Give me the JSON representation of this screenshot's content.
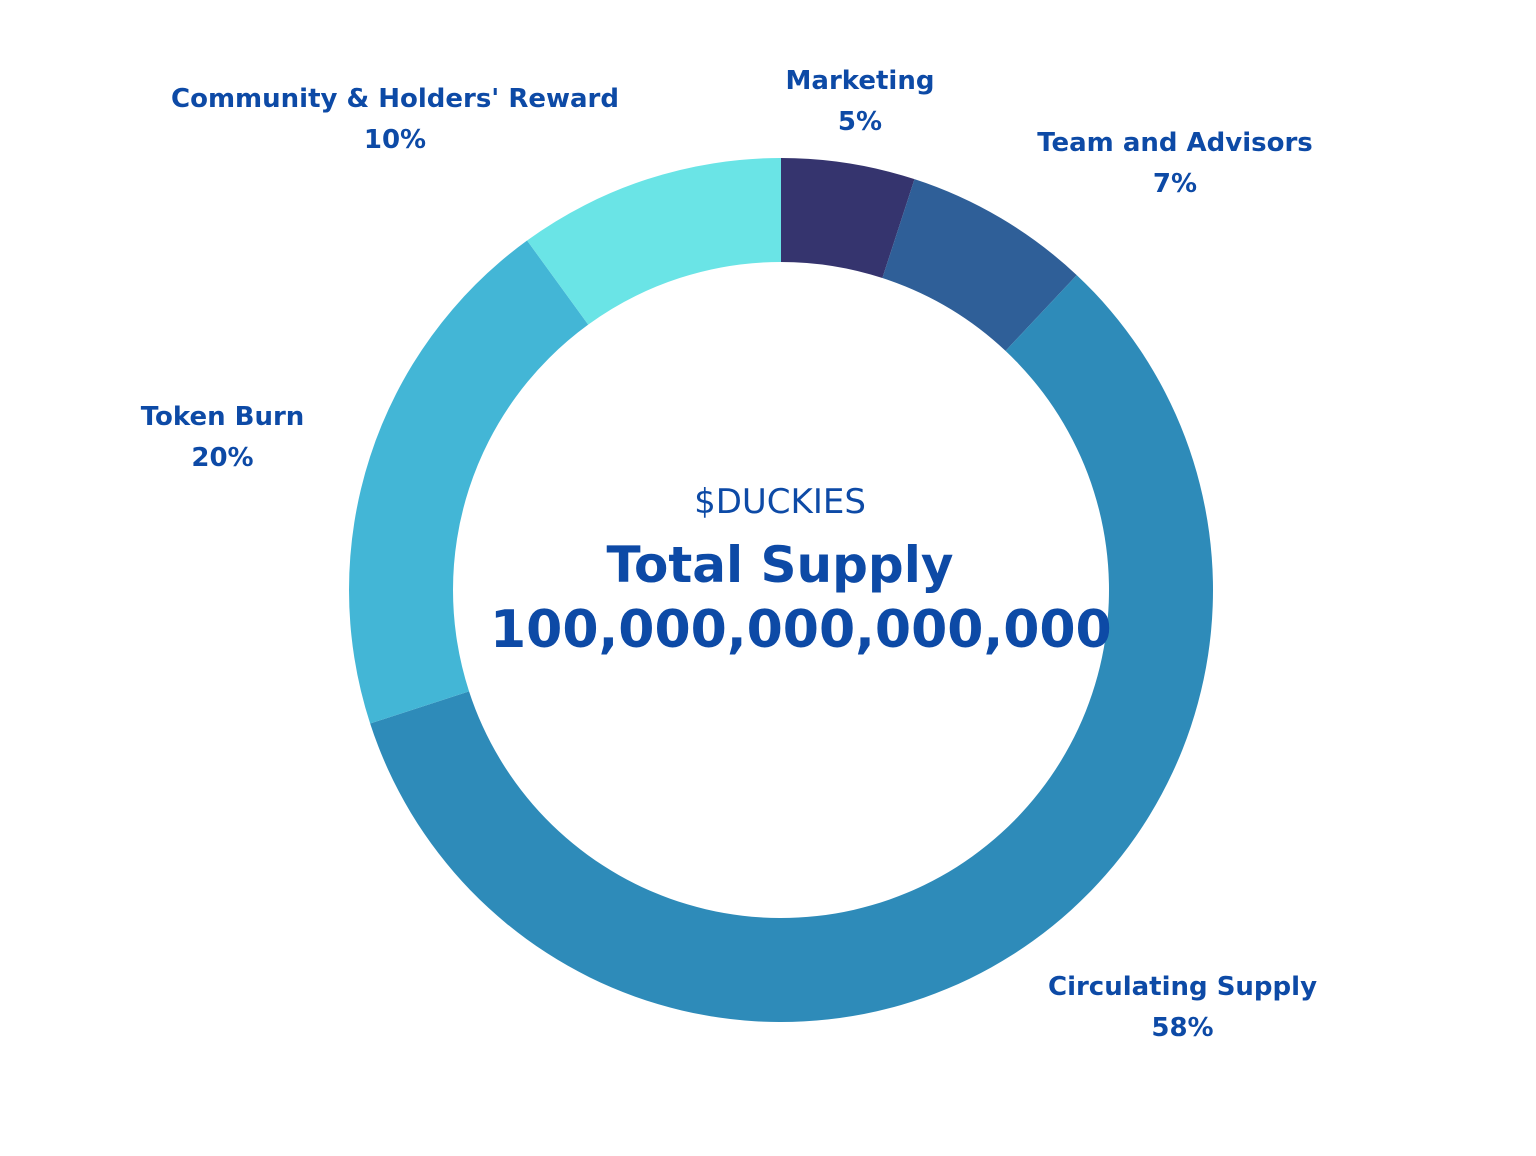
{
  "chart_data": {
    "type": "pie",
    "variant": "donut",
    "categories": [
      "Marketing",
      "Team and Advisors",
      "Circulating Supply",
      "Token Burn",
      "Community & Holders' Reward"
    ],
    "values": [
      5,
      7,
      58,
      20,
      10
    ],
    "value_labels": [
      "5%",
      "7%",
      "58%",
      "20%",
      "10%"
    ],
    "colors": [
      "#35346e",
      "#2f5f98",
      "#2e8bb9",
      "#43b6d6",
      "#6ae4e6"
    ],
    "start": "12 o'clock",
    "direction": "clockwise",
    "center": {
      "subtitle": "$DUCKIES",
      "title": "Total Supply",
      "total": "100,000,000,000,000"
    }
  },
  "colors": {
    "text": "#0d4aa6",
    "background": "#ffffff"
  }
}
